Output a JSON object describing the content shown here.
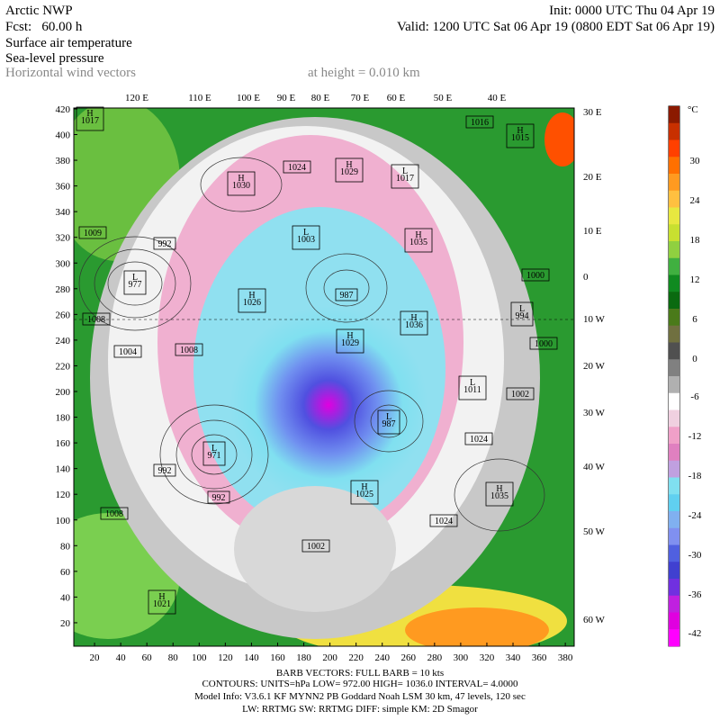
{
  "header": {
    "model": "Arctic NWP",
    "forecast": "Fcst:   60.00 h",
    "init": "Init: 0000 UTC Thu 04 Apr 19",
    "valid": "Valid: 1200 UTC Sat 06 Apr 19 (0800 EDT Sat 06 Apr 19)",
    "fields": [
      "Surface air temperature",
      "Sea-level pressure",
      "Horizontal wind vectors"
    ],
    "height": "at height = 0.010 km"
  },
  "longitude_top": [
    "120 E",
    "110 E",
    "100 E",
    "90 E",
    "80 E",
    "70 E",
    "60 E",
    "50 E",
    "40 E"
  ],
  "longitude_right": [
    "30 E",
    "20 E",
    "10 E",
    "0",
    "10 W",
    "20 W",
    "30 W",
    "40 W",
    "50 W",
    "60 W"
  ],
  "grid": {
    "left": [
      20,
      40,
      60,
      80,
      100,
      120,
      140,
      160,
      180,
      200,
      220,
      240,
      260,
      280,
      300,
      320,
      340,
      360,
      380,
      400,
      420
    ],
    "bottom": [
      20,
      40,
      60,
      80,
      100,
      120,
      140,
      160,
      180,
      200,
      220,
      240,
      260,
      280,
      300,
      320,
      340,
      360,
      380
    ]
  },
  "colorbar": {
    "unit": "°C",
    "labels": [
      30,
      24,
      18,
      12,
      6,
      0,
      -6,
      -12,
      -18,
      -24,
      -30,
      -36,
      -42
    ],
    "colors": [
      "#8b1a00",
      "#c83000",
      "#ff4000",
      "#ff7000",
      "#ff9a20",
      "#ffc040",
      "#e8e840",
      "#c8e030",
      "#90d040",
      "#40b040",
      "#108a20",
      "#0a6a10",
      "#4a7a1a",
      "#707040",
      "#505050",
      "#808080",
      "#b0b0b0",
      "#ffffff",
      "#f0d0e0",
      "#f0a0c8",
      "#e080c0",
      "#c0a0e0",
      "#80e0f0",
      "#60d0f0",
      "#80b0f0",
      "#8090f0",
      "#5060e0",
      "#4040d0",
      "#7030e0",
      "#c020e0",
      "#e000e0",
      "#ff00ff"
    ]
  },
  "pressure_labels": [
    {
      "letter": "H",
      "value": "1017"
    },
    {
      "value": "1016"
    },
    {
      "letter": "H",
      "value": "1015"
    },
    {
      "value": "1024"
    },
    {
      "letter": "H",
      "value": "1029"
    },
    {
      "letter": "L",
      "value": "1017"
    },
    {
      "letter": "H",
      "value": "1030"
    },
    {
      "value": "1009"
    },
    {
      "value": "992"
    },
    {
      "letter": "L",
      "value": "1003"
    },
    {
      "letter": "H",
      "value": "1035"
    },
    {
      "letter": "L",
      "value": "977"
    },
    {
      "value": "1000"
    },
    {
      "value": "987"
    },
    {
      "letter": "H",
      "value": "1026"
    },
    {
      "value": "1008"
    },
    {
      "letter": "H",
      "value": "1036"
    },
    {
      "letter": "L",
      "value": "994"
    },
    {
      "value": "1000"
    },
    {
      "value": "1004"
    },
    {
      "value": "1008"
    },
    {
      "letter": "H",
      "value": "1029"
    },
    {
      "letter": "L",
      "value": "1011"
    },
    {
      "value": "1002"
    },
    {
      "letter": "L",
      "value": "987"
    },
    {
      "value": "1024"
    },
    {
      "letter": "L",
      "value": "971"
    },
    {
      "value": "992"
    },
    {
      "letter": "H",
      "value": "1035"
    },
    {
      "letter": "H",
      "value": "1025"
    },
    {
      "value": "992"
    },
    {
      "value": "1008"
    },
    {
      "value": "1024"
    },
    {
      "value": "1002"
    },
    {
      "letter": "H",
      "value": "1021"
    }
  ],
  "footer": [
    "BARB VECTORS:  FULL BARB = 10 kts",
    "CONTOURS:  UNITS=hPa  LOW=   972.00     HIGH=  1036.0     INTERVAL=   4.0000",
    "Model Info: V3.6.1    KF       MYNN2 PB Goddard      Noah LSM   30 km,    47 levels,   120 sec",
    "LW: RRTMG  SW: RRTMG    DIFF: simple  KM: 2D Smagor"
  ]
}
